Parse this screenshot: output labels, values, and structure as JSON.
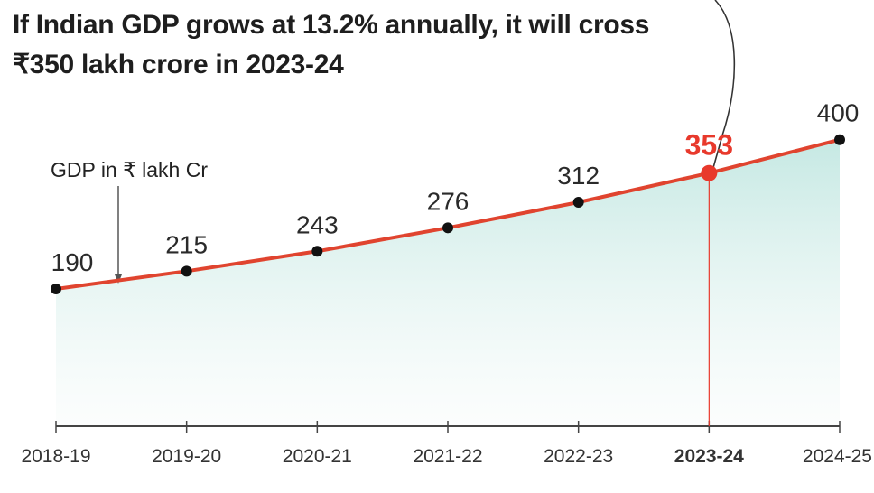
{
  "headline": {
    "line1": "If Indian GDP grows at 13.2% annually, it will cross",
    "line2": "₹350 lakh crore in 2023-24"
  },
  "colors": {
    "line": "#e0442f",
    "highlight": "#e8392c",
    "point": "#111111",
    "area_top": "#bfe6e0",
    "area_bottom": "#f7fbfa",
    "axis": "#444444",
    "tick_label": "#333333"
  },
  "chart_data": {
    "type": "line",
    "title": "If Indian GDP grows at 13.2% annually, it will cross ₹350 lakh crore in 2023-24",
    "ylabel": "GDP in ₹ lakh Cr",
    "categories": [
      "2018-19",
      "2019-20",
      "2020-21",
      "2021-22",
      "2022-23",
      "2023-24",
      "2024-25"
    ],
    "values": [
      190,
      215,
      243,
      276,
      312,
      353,
      400
    ],
    "data_labels": [
      "190",
      "215",
      "243",
      "276",
      "312",
      "353",
      "400"
    ],
    "highlight_index": 5,
    "fill_below": true,
    "grid": false
  }
}
